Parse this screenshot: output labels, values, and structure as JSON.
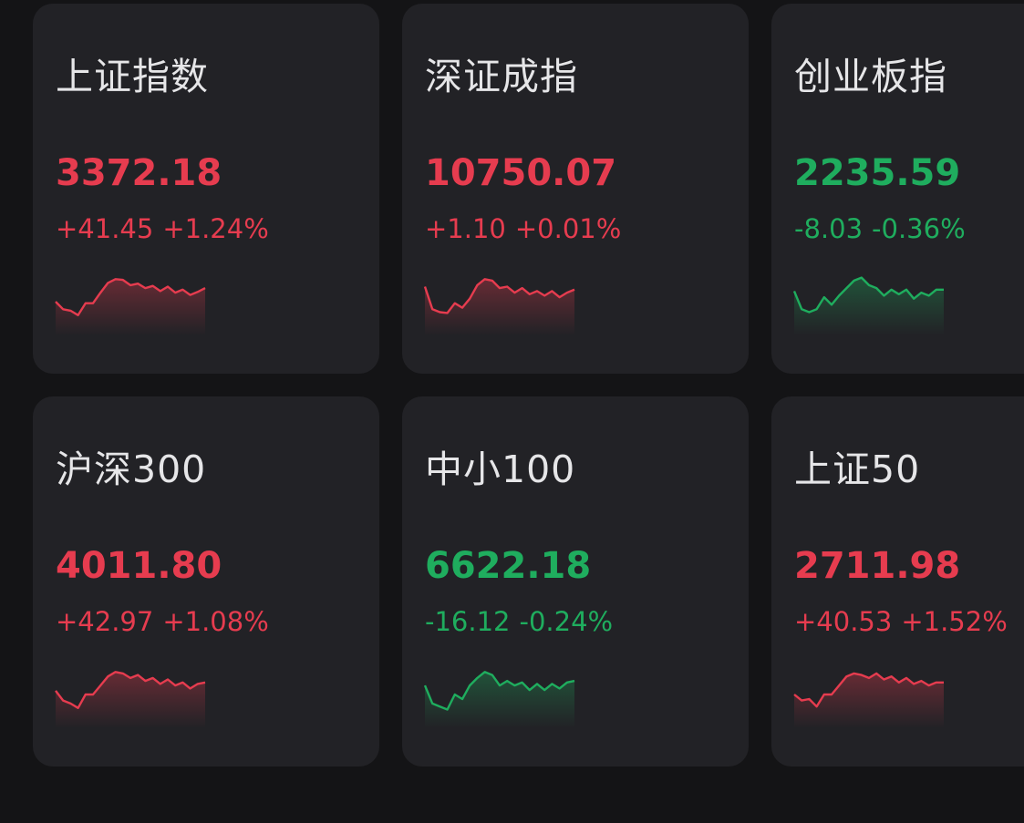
{
  "colors": {
    "up": "#e63c4f",
    "down": "#1fad5e",
    "card_bg": "#222226",
    "page_bg": "#141416",
    "name_text": "#e6e6e8"
  },
  "cards": [
    {
      "name": "上证指数",
      "price": "3372.18",
      "change": "+41.45",
      "change_pct": "+1.24%",
      "trend": "up",
      "spark": [
        40,
        30,
        28,
        22,
        38,
        38,
        52,
        65,
        70,
        69,
        62,
        64,
        58,
        61,
        54,
        60,
        52,
        56,
        49,
        53,
        58
      ]
    },
    {
      "name": "深证成指",
      "price": "10750.07",
      "change": "+1.10",
      "change_pct": "+0.01%",
      "trend": "up",
      "spark": [
        60,
        30,
        26,
        25,
        38,
        32,
        44,
        62,
        70,
        68,
        58,
        60,
        52,
        58,
        50,
        54,
        48,
        54,
        46,
        52,
        56
      ]
    },
    {
      "name": "创业板指",
      "price": "2235.59",
      "change": "-8.03",
      "change_pct": "-0.36%",
      "trend": "down",
      "spark": [
        54,
        30,
        26,
        30,
        46,
        36,
        48,
        58,
        68,
        72,
        62,
        58,
        48,
        56,
        50,
        56,
        44,
        52,
        48,
        56,
        56
      ]
    },
    {
      "name": "沪深300",
      "price": "4011.80",
      "change": "+42.97",
      "change_pct": "+1.08%",
      "trend": "up",
      "spark": [
        45,
        32,
        28,
        22,
        40,
        40,
        52,
        64,
        70,
        68,
        62,
        66,
        58,
        62,
        54,
        60,
        52,
        56,
        48,
        54,
        56
      ]
    },
    {
      "name": "中小100",
      "price": "6622.18",
      "change": "-16.12",
      "change_pct": "-0.24%",
      "trend": "down",
      "spark": [
        52,
        28,
        24,
        20,
        40,
        34,
        52,
        62,
        70,
        66,
        52,
        58,
        52,
        56,
        46,
        54,
        46,
        54,
        48,
        56,
        58
      ]
    },
    {
      "name": "上证50",
      "price": "2711.98",
      "change": "+40.53",
      "change_pct": "+1.52%",
      "trend": "up",
      "spark": [
        40,
        32,
        34,
        24,
        40,
        40,
        52,
        64,
        68,
        66,
        62,
        68,
        60,
        64,
        56,
        62,
        54,
        58,
        52,
        56,
        56
      ]
    }
  ]
}
